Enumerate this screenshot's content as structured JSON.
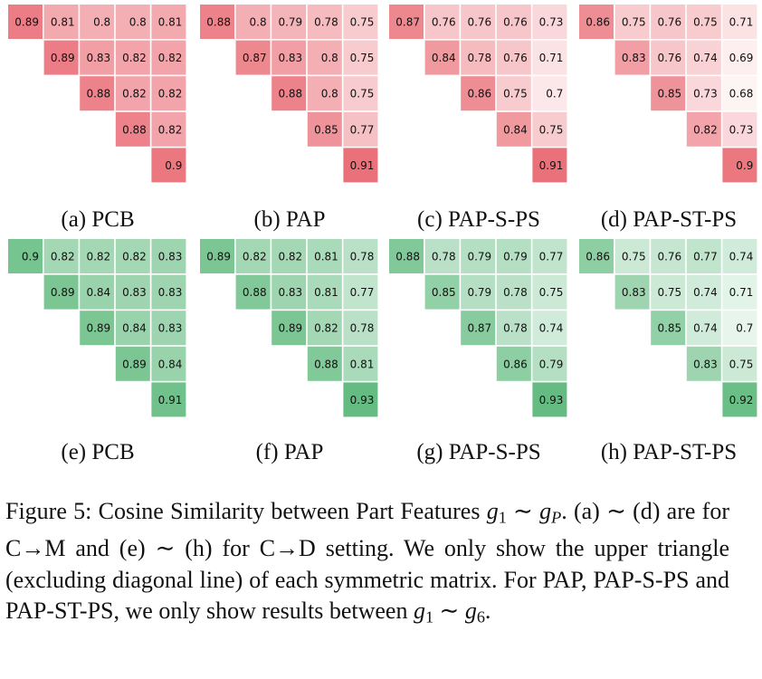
{
  "chart_data": [
    {
      "type": "heatmap",
      "group": "C→M",
      "color": "#e8606a",
      "caption": "(a) PCB",
      "rows": [
        [
          0.89,
          0.81,
          0.8,
          0.8,
          0.81
        ],
        [
          0.89,
          0.83,
          0.82,
          0.82
        ],
        [
          0.88,
          0.82,
          0.82
        ],
        [
          0.88,
          0.82
        ],
        [
          0.9
        ]
      ]
    },
    {
      "type": "heatmap",
      "group": "C→M",
      "color": "#e8606a",
      "caption": "(b) PAP",
      "rows": [
        [
          0.88,
          0.8,
          0.79,
          0.78,
          0.75
        ],
        [
          0.87,
          0.83,
          0.8,
          0.75
        ],
        [
          0.88,
          0.8,
          0.75
        ],
        [
          0.85,
          0.77
        ],
        [
          0.91
        ]
      ]
    },
    {
      "type": "heatmap",
      "group": "C→M",
      "color": "#e8606a",
      "caption": "(c) PAP-S-PS",
      "rows": [
        [
          0.87,
          0.76,
          0.76,
          0.76,
          0.73
        ],
        [
          0.84,
          0.78,
          0.76,
          0.71
        ],
        [
          0.86,
          0.75,
          0.7
        ],
        [
          0.84,
          0.75
        ],
        [
          0.91
        ]
      ]
    },
    {
      "type": "heatmap",
      "group": "C→M",
      "color": "#e8606a",
      "caption": "(d) PAP-ST-PS",
      "rows": [
        [
          0.86,
          0.75,
          0.76,
          0.75,
          0.71
        ],
        [
          0.83,
          0.76,
          0.74,
          0.69
        ],
        [
          0.85,
          0.73,
          0.68
        ],
        [
          0.82,
          0.73
        ],
        [
          0.9
        ]
      ]
    },
    {
      "type": "heatmap",
      "group": "C→D",
      "color": "#5fba7d",
      "caption": "(e) PCB",
      "rows": [
        [
          0.9,
          0.82,
          0.82,
          0.82,
          0.83
        ],
        [
          0.89,
          0.84,
          0.83,
          0.83
        ],
        [
          0.89,
          0.84,
          0.83
        ],
        [
          0.89,
          0.84
        ],
        [
          0.91
        ]
      ]
    },
    {
      "type": "heatmap",
      "group": "C→D",
      "color": "#5fba7d",
      "caption": "(f) PAP",
      "rows": [
        [
          0.89,
          0.82,
          0.82,
          0.81,
          0.78
        ],
        [
          0.88,
          0.83,
          0.81,
          0.77
        ],
        [
          0.89,
          0.82,
          0.78
        ],
        [
          0.88,
          0.81
        ],
        [
          0.93
        ]
      ]
    },
    {
      "type": "heatmap",
      "group": "C→D",
      "color": "#5fba7d",
      "caption": "(g) PAP-S-PS",
      "rows": [
        [
          0.88,
          0.78,
          0.79,
          0.79,
          0.77
        ],
        [
          0.85,
          0.79,
          0.78,
          0.75
        ],
        [
          0.87,
          0.78,
          0.74
        ],
        [
          0.86,
          0.79
        ],
        [
          0.93
        ]
      ]
    },
    {
      "type": "heatmap",
      "group": "C→D",
      "color": "#5fba7d",
      "caption": "(h) PAP-ST-PS",
      "rows": [
        [
          0.86,
          0.75,
          0.76,
          0.77,
          0.74
        ],
        [
          0.83,
          0.75,
          0.74,
          0.71
        ],
        [
          0.85,
          0.74,
          0.7
        ],
        [
          0.83,
          0.75
        ],
        [
          0.92
        ]
      ]
    }
  ],
  "caption": {
    "line1_a": "Figure 5: Cosine Similarity between Part Features ",
    "g": "g",
    "sub1": "1",
    "sim": " ∼ ",
    "subP": "P",
    "line1_end": ".",
    "line2": "(a) ∼ (d) are for C→M and (e) ∼ (h) for C→D setting. We only show the upper triangle (excluding diagonal line) of each symmetric matrix.  For PAP, PAP-S-PS and PAP-ST-PS, we only show results between ",
    "sub6": "6",
    "end": "."
  }
}
